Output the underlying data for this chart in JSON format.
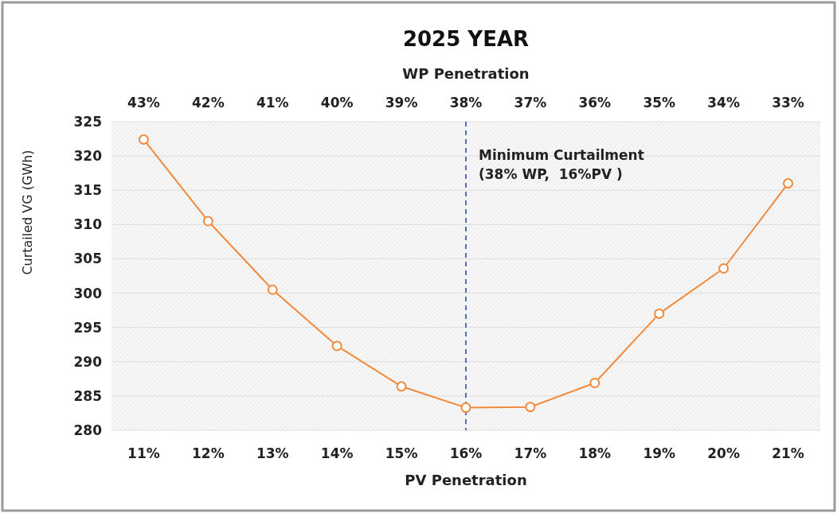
{
  "chart_data": {
    "type": "line",
    "title": "2025 YEAR",
    "xlabel": "PV Penetration",
    "x2label": "WP Penetration",
    "ylabel": "Curtailed VG (GWh)",
    "x": [
      11,
      12,
      13,
      14,
      15,
      16,
      17,
      18,
      19,
      20,
      21
    ],
    "series": [
      {
        "color": "#f08a3c",
        "values": [
          322.4,
          310.5,
          300.5,
          292.3,
          286.4,
          283.3,
          283.4,
          286.9,
          297.0,
          303.6,
          316.0
        ]
      }
    ],
    "xlim": [
      10.5,
      21.5
    ],
    "xticks": [
      {
        "value": 11,
        "label": "11%"
      },
      {
        "value": 12,
        "label": "12%"
      },
      {
        "value": 13,
        "label": "13%"
      },
      {
        "value": 14,
        "label": "14%"
      },
      {
        "value": 15,
        "label": "15%"
      },
      {
        "value": 16,
        "label": "16%"
      },
      {
        "value": 17,
        "label": "17%"
      },
      {
        "value": 18,
        "label": "18%"
      },
      {
        "value": 19,
        "label": "19%"
      },
      {
        "value": 20,
        "label": "20%"
      },
      {
        "value": 21,
        "label": "21%"
      }
    ],
    "x2lim": [
      43.5,
      32.5
    ],
    "x2ticks": [
      {
        "value": 43,
        "label": "43%"
      },
      {
        "value": 42,
        "label": "42%"
      },
      {
        "value": 41,
        "label": "41%"
      },
      {
        "value": 40,
        "label": "40%"
      },
      {
        "value": 39,
        "label": "39%"
      },
      {
        "value": 38,
        "label": "38%"
      },
      {
        "value": 37,
        "label": "37%"
      },
      {
        "value": 36,
        "label": "36%"
      },
      {
        "value": 35,
        "label": "35%"
      },
      {
        "value": 34,
        "label": "34%"
      },
      {
        "value": 33,
        "label": "33%"
      }
    ],
    "ylim": [
      280,
      325
    ],
    "yticks": [
      280,
      285,
      290,
      295,
      300,
      305,
      310,
      315,
      320,
      325
    ],
    "ref_lines": [
      {
        "axis": "x",
        "value": 16,
        "color": "#4472c4",
        "line_style": "dashed"
      }
    ],
    "annotations": [
      {
        "text": "Minimum Curtailment\n(38% WP,  16%PV )",
        "x": 16,
        "y": 318
      }
    ],
    "marker": "circle",
    "line_style": "solid",
    "grid": "y"
  }
}
